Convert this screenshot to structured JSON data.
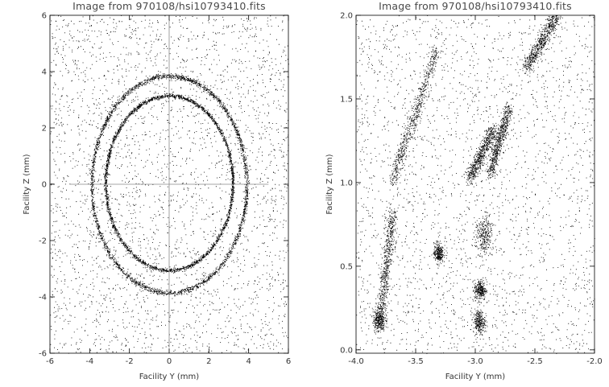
{
  "figure": {
    "left_panel_title": "Image from 970108/hsi10793410.fits",
    "right_panel_title": "Image from 970108/hsi10793410.fits"
  },
  "chart_data": [
    {
      "type": "scatter",
      "title": "Image from 970108/hsi10793410.fits",
      "xlabel": "Facility Y (mm)",
      "ylabel": "Facility Z (mm)",
      "xlim": [
        -6,
        6
      ],
      "ylim": [
        -6,
        6
      ],
      "xticks": [
        "-6",
        "-4",
        "-2",
        "0",
        "2",
        "4",
        "6"
      ],
      "yticks": [
        "-6",
        "-4",
        "-2",
        "0",
        "2",
        "4",
        "6"
      ],
      "reference_lines": [
        {
          "orientation": "horizontal",
          "at": 0,
          "from": -5,
          "to": 5
        },
        {
          "orientation": "vertical",
          "at": 0,
          "from": -5.8,
          "to": 5.8
        }
      ],
      "features": [
        {
          "shape": "ellipse-ring",
          "center": [
            0,
            0
          ],
          "semi_axis_y": 3.9,
          "semi_axis_z": 3.85
        },
        {
          "shape": "ellipse-ring",
          "center": [
            0,
            0.05
          ],
          "semi_axis_y": 3.2,
          "semi_axis_z": 3.1
        }
      ],
      "background_points": "sparse scattered events, denser near left half",
      "color": "#000000",
      "grid": false
    },
    {
      "type": "scatter",
      "title": "Image from 970108/hsi10793410.fits",
      "xlabel": "Facility Y (mm)",
      "ylabel": "Facility Z (mm)",
      "xlim": [
        -4.0,
        -2.0
      ],
      "ylim": [
        -0.02,
        2.0
      ],
      "xticks": [
        "-4.0",
        "-3.5",
        "-3.0",
        "-2.5",
        "-2.0"
      ],
      "yticks": [
        "0.0",
        "0.5",
        "1.0",
        "1.5",
        "2.0"
      ],
      "features": [
        {
          "shape": "streak",
          "from": [
            -3.7,
            1.0
          ],
          "to": [
            -3.32,
            1.8
          ]
        },
        {
          "shape": "streak",
          "from": [
            -3.05,
            1.02
          ],
          "to": [
            -2.85,
            1.32
          ]
        },
        {
          "shape": "streak",
          "from": [
            -2.88,
            1.05
          ],
          "to": [
            -2.72,
            1.45
          ]
        },
        {
          "shape": "streak",
          "from": [
            -2.58,
            1.68
          ],
          "to": [
            -2.32,
            2.0
          ]
        },
        {
          "shape": "streak",
          "from": [
            -3.8,
            0.15
          ],
          "to": [
            -3.7,
            0.82
          ]
        },
        {
          "shape": "blob",
          "center": [
            -2.93,
            0.68
          ],
          "size": [
            0.07,
            0.12
          ]
        },
        {
          "shape": "blob",
          "center": [
            -2.96,
            0.36
          ],
          "size": [
            0.05,
            0.06
          ]
        },
        {
          "shape": "blob",
          "center": [
            -2.97,
            0.17
          ],
          "size": [
            0.05,
            0.07
          ]
        },
        {
          "shape": "blob",
          "center": [
            -3.31,
            0.58
          ],
          "size": [
            0.04,
            0.06
          ]
        },
        {
          "shape": "blob",
          "center": [
            -3.81,
            0.18
          ],
          "size": [
            0.05,
            0.07
          ]
        }
      ],
      "background_points": "sparse uniformly scattered events",
      "color": "#000000",
      "grid": false
    }
  ]
}
